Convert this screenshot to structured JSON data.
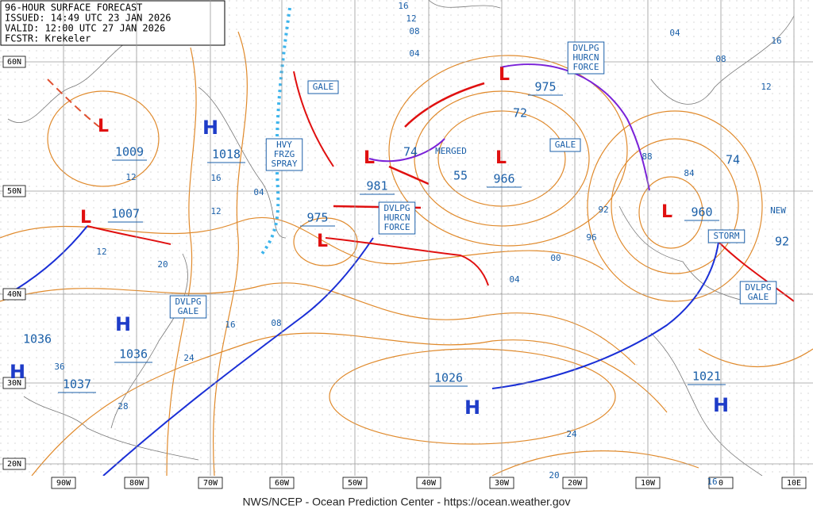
{
  "header": {
    "title": "96-HOUR SURFACE FORECAST",
    "issued": "ISSUED: 14:49 UTC 23 JAN 2026",
    "valid": "VALID: 12:00 UTC 27 JAN 2026",
    "forecaster": "FCSTR: Krekeler"
  },
  "footer": "NWS/NCEP - Ocean Prediction Center - https://ocean.weather.gov",
  "latitude_labels": [
    "60N",
    "50N",
    "40N",
    "30N",
    "20N"
  ],
  "longitude_labels": [
    "90W",
    "80W",
    "70W",
    "60W",
    "50W",
    "40W",
    "30W",
    "20W",
    "10W",
    "0",
    "10E"
  ],
  "highs": [
    {
      "symbol": "H",
      "pressure": "1018"
    },
    {
      "symbol": "H",
      "pressure": "1036"
    },
    {
      "symbol": "H",
      "pressure": "1037"
    },
    {
      "symbol": "H",
      "pressure": "1026"
    },
    {
      "symbol": "H",
      "pressure": "1021"
    }
  ],
  "lows": [
    {
      "symbol": "L",
      "pressure": "1009"
    },
    {
      "symbol": "L",
      "pressure": "1007"
    },
    {
      "symbol": "L",
      "pressure": "981"
    },
    {
      "symbol": "L",
      "pressure": "975"
    },
    {
      "symbol": "L",
      "pressure": "975"
    },
    {
      "symbol": "L",
      "pressure": "966"
    },
    {
      "symbol": "L",
      "pressure": "960"
    }
  ],
  "pressure_labels": [
    "1036",
    "74",
    "55",
    "72",
    "74",
    "92"
  ],
  "boxes": [
    [
      "GALE"
    ],
    [
      "HVY",
      "FRZG",
      "SPRAY"
    ],
    [
      "DVLPG",
      "HURCN",
      "FORCE"
    ],
    [
      "DVLPG",
      "HURCN",
      "FORCE"
    ],
    [
      "GALE"
    ],
    [
      "STORM"
    ],
    [
      "DVLPG",
      "GALE"
    ],
    [
      "DVLPG",
      "GALE"
    ]
  ],
  "plain_labels": [
    "MERGED",
    "NEW"
  ],
  "isobar_labels": [
    "16",
    "12",
    "08",
    "04",
    "04",
    "08",
    "16",
    "12",
    "12",
    "16",
    "12",
    "04",
    "12",
    "20",
    "16",
    "08",
    "24",
    "36",
    "28",
    "92",
    "96",
    "00",
    "04",
    "88",
    "84",
    "24",
    "20",
    "16"
  ]
}
